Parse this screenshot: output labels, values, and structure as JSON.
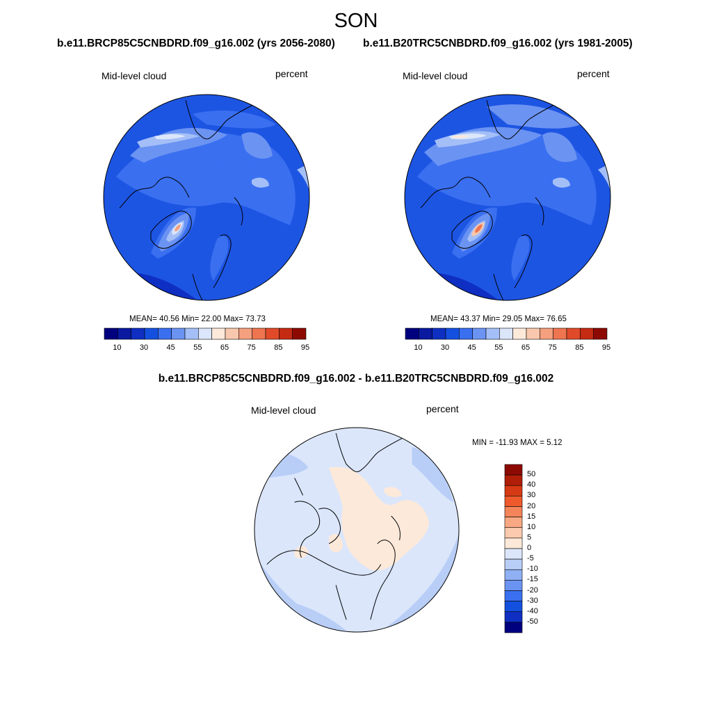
{
  "season": "SON",
  "panels": [
    {
      "case_title": "b.e11.BRCP85C5CNBDRD.f09_g16.002 (yrs 2056-2080)",
      "variable": "Mid-level cloud",
      "units": "percent",
      "stats": "MEAN=  40.56  Min=  22.00  Max=  73.73"
    },
    {
      "case_title": "b.e11.B20TRC5CNBDRD.f09_g16.002 (yrs 1981-2005)",
      "variable": "Mid-level cloud",
      "units": "percent",
      "stats": "MEAN=  43.37  Min=  29.05  Max=  76.65"
    }
  ],
  "colorbar": {
    "tick_labels": [
      "10",
      "30",
      "45",
      "55",
      "65",
      "75",
      "85",
      "95"
    ],
    "colors": [
      "#00007f",
      "#0a19a0",
      "#0f2fc2",
      "#1450e0",
      "#3a6ff0",
      "#6b93f2",
      "#a4bff7",
      "#dbe6fb",
      "#fde9d9",
      "#f8c7ad",
      "#f5a07f",
      "#ee7550",
      "#e04a29",
      "#c52a12",
      "#8d0a02"
    ]
  },
  "difference": {
    "title": "b.e11.BRCP85C5CNBDRD.f09_g16.002 - b.e11.B20TRC5CNBDRD.f09_g16.002",
    "variable": "Mid-level cloud",
    "units": "percent",
    "stats": "MIN = -11.93 MAX =   5.12",
    "colorbar_labels": [
      "50",
      "40",
      "30",
      "20",
      "15",
      "10",
      "5",
      "0",
      "-5",
      "-10",
      "-15",
      "-20",
      "-30",
      "-40",
      "-50"
    ],
    "colorbar_colors": [
      "#8d0a02",
      "#b01e08",
      "#d63a14",
      "#ee5a2c",
      "#f4845a",
      "#f8a883",
      "#fbcaae",
      "#fde9d9",
      "#dbe6fb",
      "#b8cef7",
      "#8fb0f3",
      "#6b93f2",
      "#3a6ff0",
      "#1450e0",
      "#0f2fc2",
      "#00007f"
    ]
  }
}
